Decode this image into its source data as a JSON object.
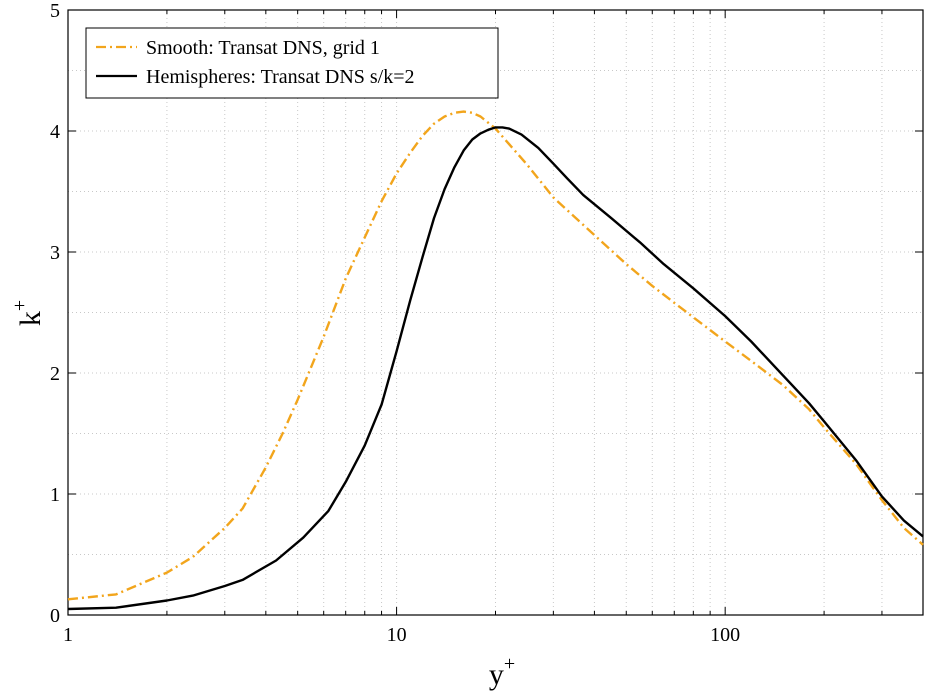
{
  "chart_data": {
    "type": "line",
    "x_scale": "log",
    "xlim": [
      1,
      400
    ],
    "ylim": [
      0,
      5
    ],
    "x_ticks": [
      1,
      10,
      100
    ],
    "x_tick_labels": [
      "1",
      "10",
      "100"
    ],
    "y_ticks": [
      0,
      1,
      2,
      3,
      4,
      5
    ],
    "y_tick_labels": [
      "0",
      "1",
      "2",
      "3",
      "4",
      "5"
    ],
    "xlabel": "y",
    "xlabel_sup": "+",
    "ylabel": "k",
    "ylabel_sup": "+",
    "grid": true,
    "legend_position": "top-left",
    "series": [
      {
        "name": "Smooth: Transat DNS, grid 1",
        "color": "#f2a51c",
        "style": "dash-dot",
        "x": [
          1,
          1.4,
          2,
          2.4,
          3,
          3.4,
          4,
          4.5,
          5,
          6,
          7,
          8,
          9,
          10,
          11,
          12,
          13,
          14,
          15,
          16,
          17,
          18,
          20,
          25,
          30,
          40,
          50,
          60,
          70,
          80,
          100,
          120,
          150,
          180,
          200,
          250,
          300,
          350,
          400
        ],
        "y": [
          0.13,
          0.17,
          0.35,
          0.48,
          0.72,
          0.88,
          1.22,
          1.5,
          1.78,
          2.3,
          2.78,
          3.12,
          3.42,
          3.65,
          3.82,
          3.96,
          4.06,
          4.12,
          4.15,
          4.16,
          4.15,
          4.12,
          4.02,
          3.72,
          3.45,
          3.14,
          2.9,
          2.72,
          2.58,
          2.46,
          2.26,
          2.1,
          1.9,
          1.7,
          1.55,
          1.25,
          0.95,
          0.72,
          0.58
        ]
      },
      {
        "name": "Hemispheres: Transat DNS s/k=2",
        "color": "#000000",
        "style": "solid",
        "x": [
          1,
          1.4,
          2,
          2.4,
          3,
          3.4,
          4.3,
          5.2,
          6.2,
          7,
          8,
          9,
          10,
          11,
          12,
          13,
          14,
          15,
          16,
          17,
          18,
          19,
          20,
          21,
          22,
          24,
          27,
          30,
          33,
          37,
          45,
          55,
          65,
          80,
          100,
          120,
          150,
          180,
          200,
          250,
          300,
          350,
          400
        ],
        "y": [
          0.05,
          0.06,
          0.12,
          0.16,
          0.24,
          0.29,
          0.45,
          0.64,
          0.86,
          1.1,
          1.4,
          1.74,
          2.18,
          2.6,
          2.96,
          3.28,
          3.52,
          3.7,
          3.84,
          3.93,
          3.98,
          4.01,
          4.03,
          4.03,
          4.02,
          3.97,
          3.86,
          3.73,
          3.61,
          3.47,
          3.28,
          3.08,
          2.9,
          2.7,
          2.47,
          2.26,
          1.98,
          1.75,
          1.6,
          1.28,
          0.98,
          0.78,
          0.65
        ]
      }
    ]
  }
}
